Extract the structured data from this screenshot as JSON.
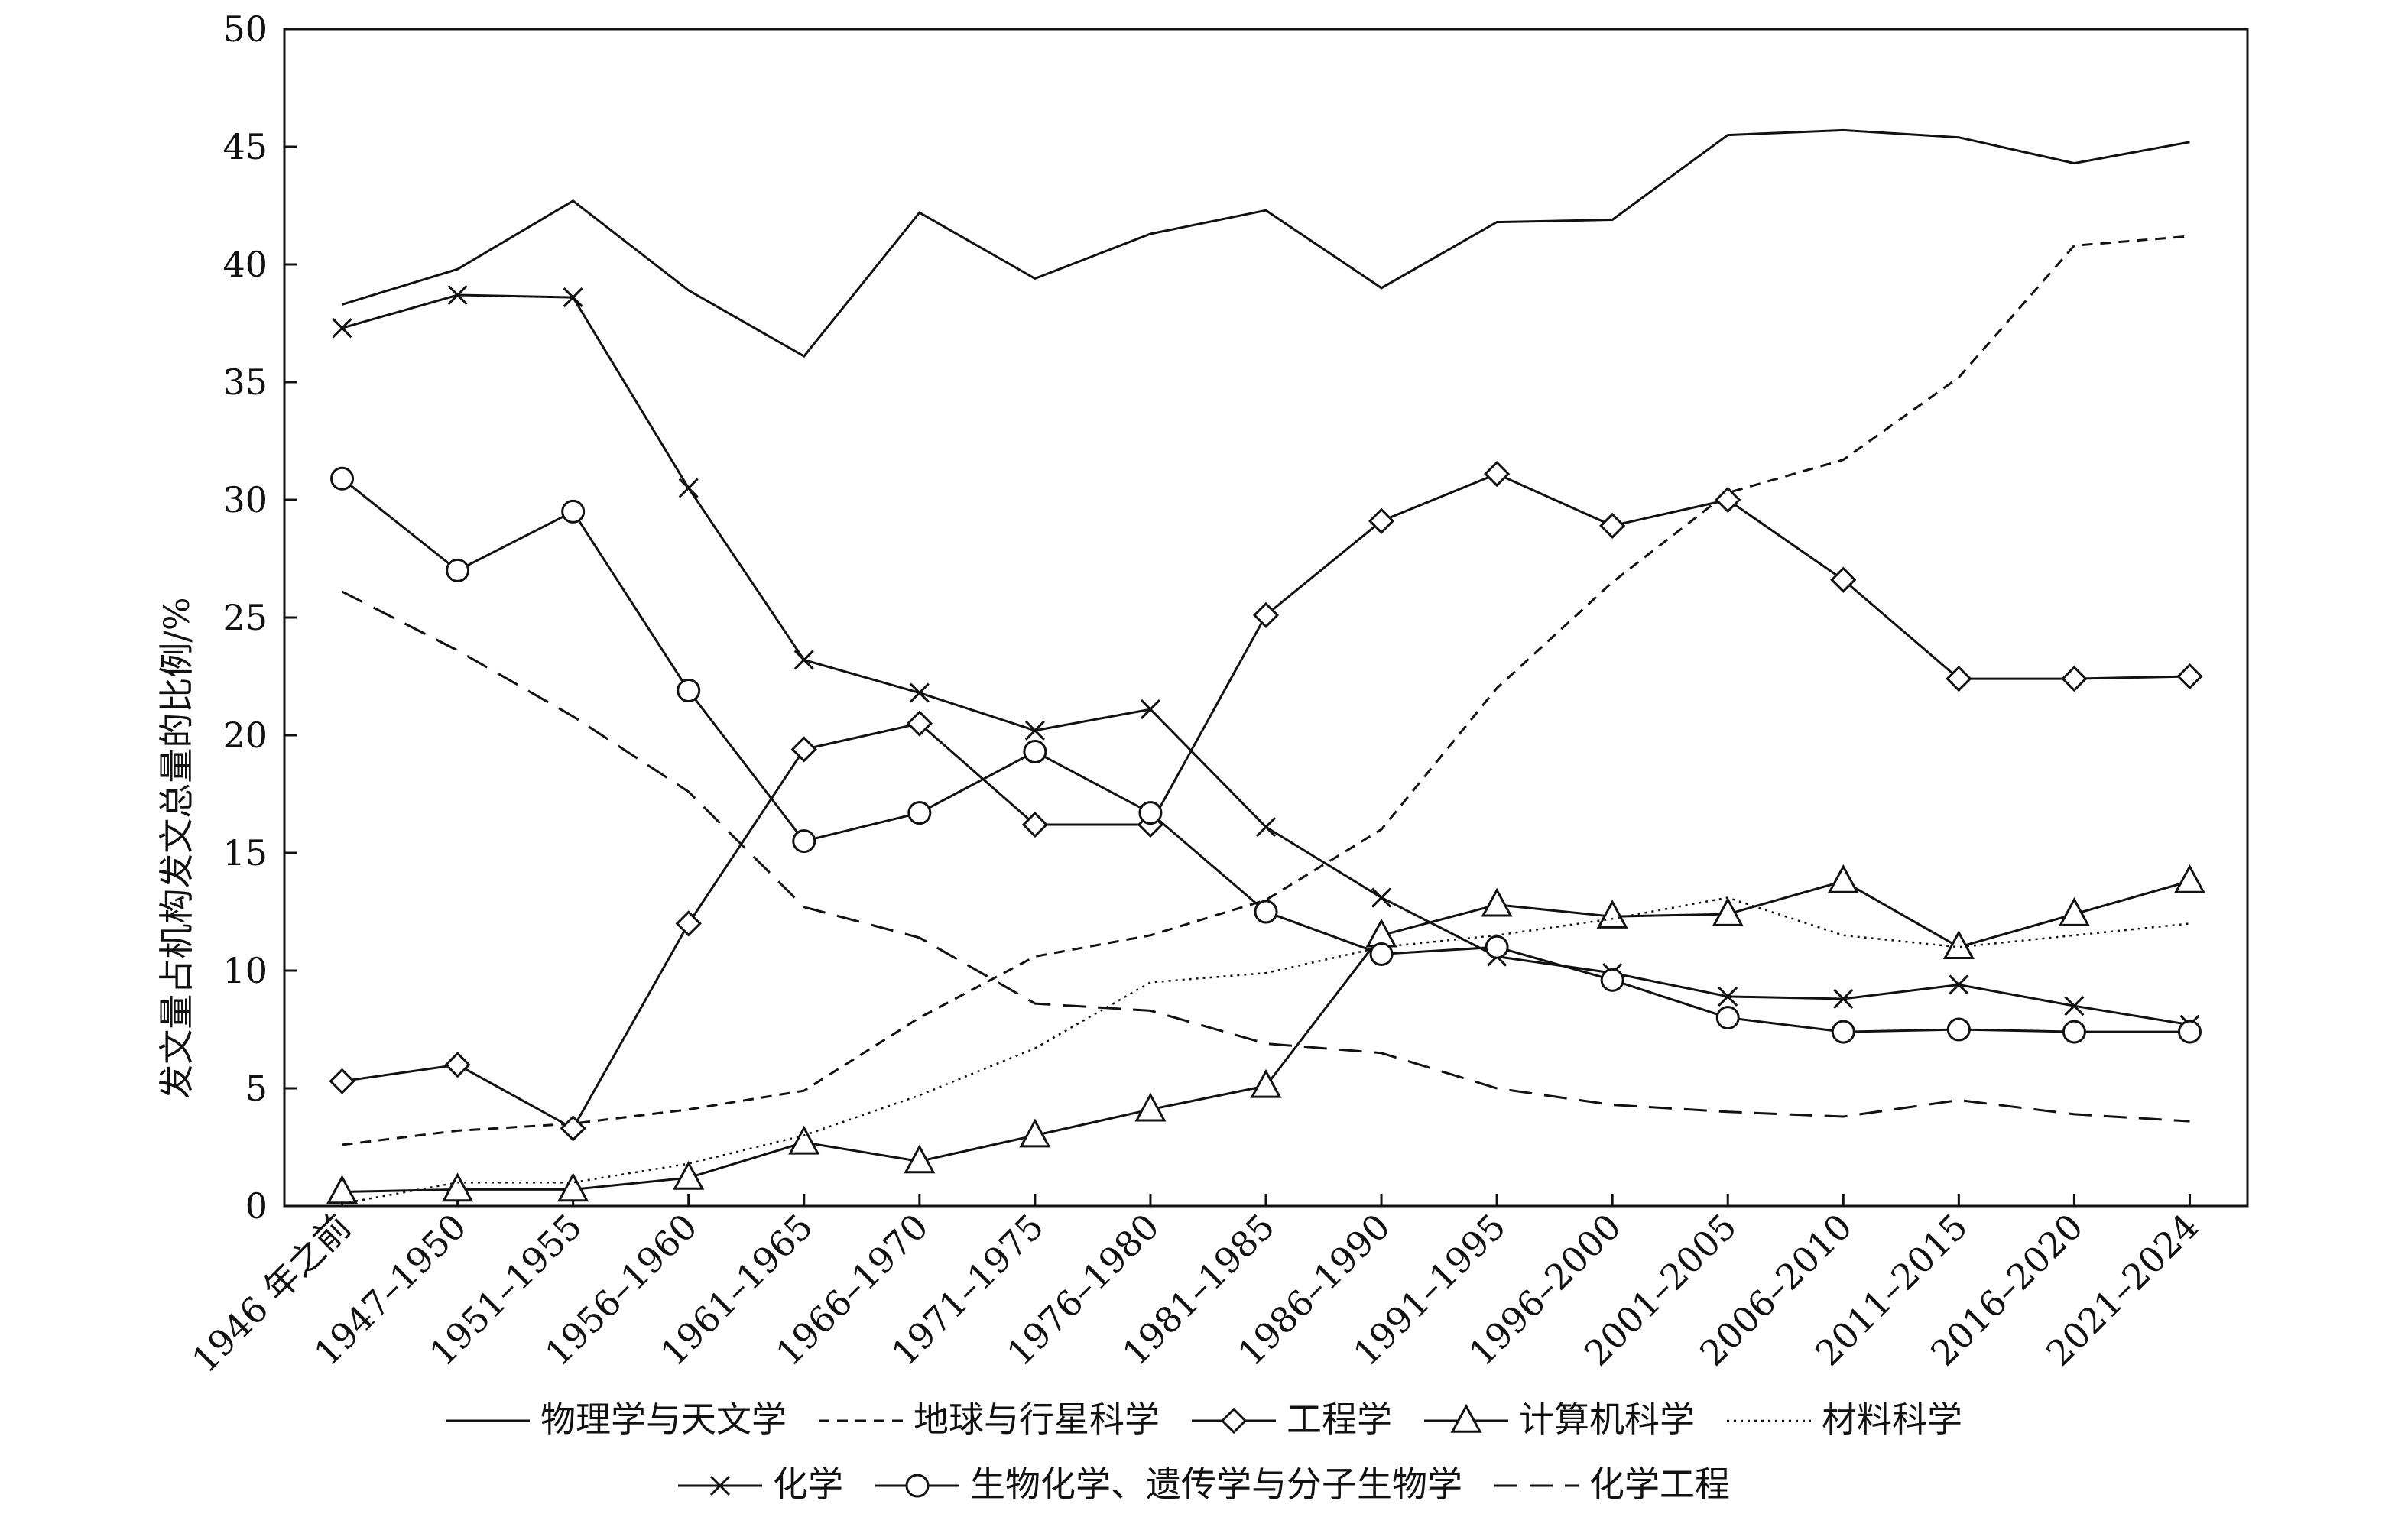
{
  "chart_data": {
    "type": "line",
    "ylabel": "发文量占机构发文总量的比例/%",
    "xlabel": "",
    "ylim": [
      0,
      50
    ],
    "yticks": [
      0,
      5,
      10,
      15,
      20,
      25,
      30,
      35,
      40,
      45,
      50
    ],
    "grid": false,
    "legend_position": "bottom",
    "categories": [
      "1946 年之前",
      "1947–1950",
      "1951–1955",
      "1956–1960",
      "1961–1965",
      "1966–1970",
      "1971–1975",
      "1976–1980",
      "1981–1985",
      "1986–1990",
      "1991–1995",
      "1996–2000",
      "2001–2005",
      "2006–2010",
      "2011–2015",
      "2016–2020",
      "2021–2024"
    ],
    "series": [
      {
        "name": "物理学与天文学",
        "dash": "solid",
        "marker": "none",
        "values": [
          38.3,
          39.8,
          42.7,
          38.9,
          36.1,
          42.2,
          39.4,
          41.3,
          42.3,
          39.0,
          41.8,
          41.9,
          45.5,
          45.7,
          45.4,
          44.3,
          45.2
        ]
      },
      {
        "name": "地球与行星科学",
        "dash": "short",
        "marker": "none",
        "values": [
          2.6,
          3.2,
          3.5,
          4.1,
          4.9,
          8.0,
          10.6,
          11.5,
          13.0,
          16.0,
          22.0,
          26.5,
          30.3,
          31.7,
          35.2,
          40.8,
          41.2
        ]
      },
      {
        "name": "工程学",
        "dash": "solid",
        "marker": "diamond",
        "values": [
          5.3,
          6.0,
          3.3,
          12.0,
          19.4,
          20.5,
          16.2,
          16.2,
          25.1,
          29.1,
          31.1,
          28.9,
          30.0,
          26.6,
          22.4,
          22.4,
          22.5
        ]
      },
      {
        "name": "计算机科学",
        "dash": "solid",
        "marker": "triangle",
        "values": [
          0.6,
          0.7,
          0.7,
          1.2,
          2.7,
          1.9,
          3.0,
          4.1,
          5.1,
          11.5,
          12.8,
          12.3,
          12.4,
          13.8,
          11.0,
          12.4,
          13.8
        ]
      },
      {
        "name": "材料科学",
        "dash": "dotted",
        "marker": "none",
        "values": [
          0.1,
          1.0,
          1.0,
          1.8,
          3.0,
          4.7,
          6.7,
          9.5,
          9.9,
          11.0,
          11.5,
          12.2,
          13.1,
          11.5,
          11.0,
          11.5,
          12.0
        ]
      },
      {
        "name": "化学",
        "dash": "solid",
        "marker": "x",
        "values": [
          37.3,
          38.7,
          38.6,
          30.5,
          23.2,
          21.8,
          20.2,
          21.1,
          16.1,
          13.1,
          10.6,
          9.9,
          8.9,
          8.8,
          9.4,
          8.5,
          7.7
        ]
      },
      {
        "name": "生物化学、遗传学与分子生物学",
        "dash": "solid",
        "marker": "circle",
        "values": [
          30.9,
          27.0,
          29.5,
          21.9,
          15.5,
          16.7,
          19.3,
          16.7,
          12.5,
          10.7,
          11.0,
          9.6,
          8.0,
          7.4,
          7.5,
          7.4,
          7.4
        ]
      },
      {
        "name": "化学工程",
        "dash": "long",
        "marker": "none",
        "values": [
          26.1,
          23.6,
          20.8,
          17.6,
          12.7,
          11.4,
          8.6,
          8.3,
          6.9,
          6.5,
          5.0,
          4.3,
          4.0,
          3.8,
          4.5,
          3.9,
          3.6
        ]
      }
    ]
  }
}
